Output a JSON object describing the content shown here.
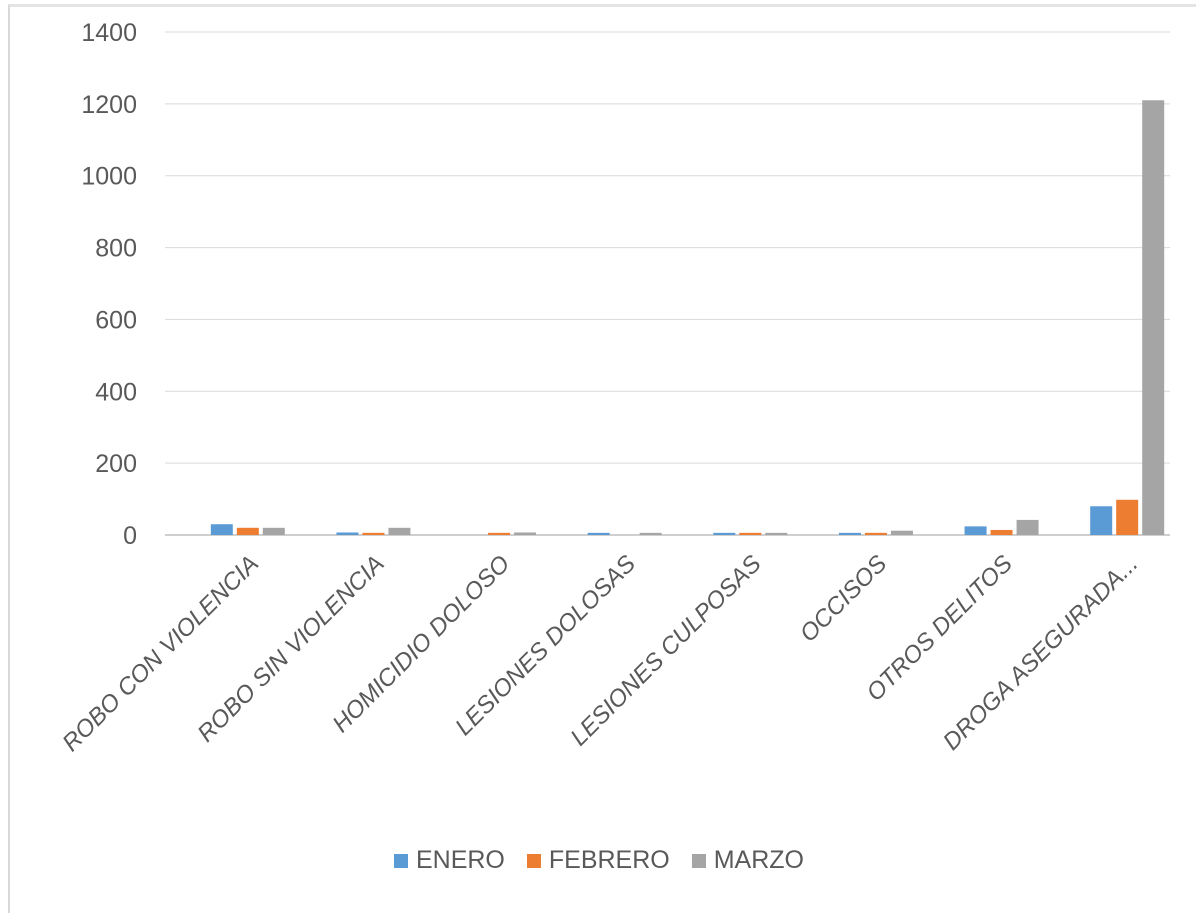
{
  "chart_data": {
    "type": "bar",
    "categories": [
      "ROBO CON VIOLENCIA",
      "ROBO SIN VIOLENCIA",
      "HOMICIDIO DOLOSO",
      "LESIONES DOLOSAS",
      "LESIONES CULPOSAS",
      "OCCISOS",
      "OTROS DELITOS",
      "DROGA ASEGURADA..."
    ],
    "series": [
      {
        "name": "ENERO",
        "color": "#5b9bd5",
        "values": [
          30,
          7,
          0,
          6,
          6,
          6,
          24,
          80
        ]
      },
      {
        "name": "FEBRERO",
        "color": "#ed7d31",
        "values": [
          20,
          6,
          6,
          0,
          6,
          6,
          14,
          98
        ]
      },
      {
        "name": "MARZO",
        "color": "#a5a5a5",
        "values": [
          20,
          20,
          7,
          6,
          6,
          12,
          42,
          1210
        ]
      }
    ],
    "ylim": [
      0,
      1400
    ],
    "yticks": [
      0,
      200,
      400,
      600,
      800,
      1000,
      1200,
      1400
    ],
    "grid": true,
    "legend": "bottom"
  }
}
